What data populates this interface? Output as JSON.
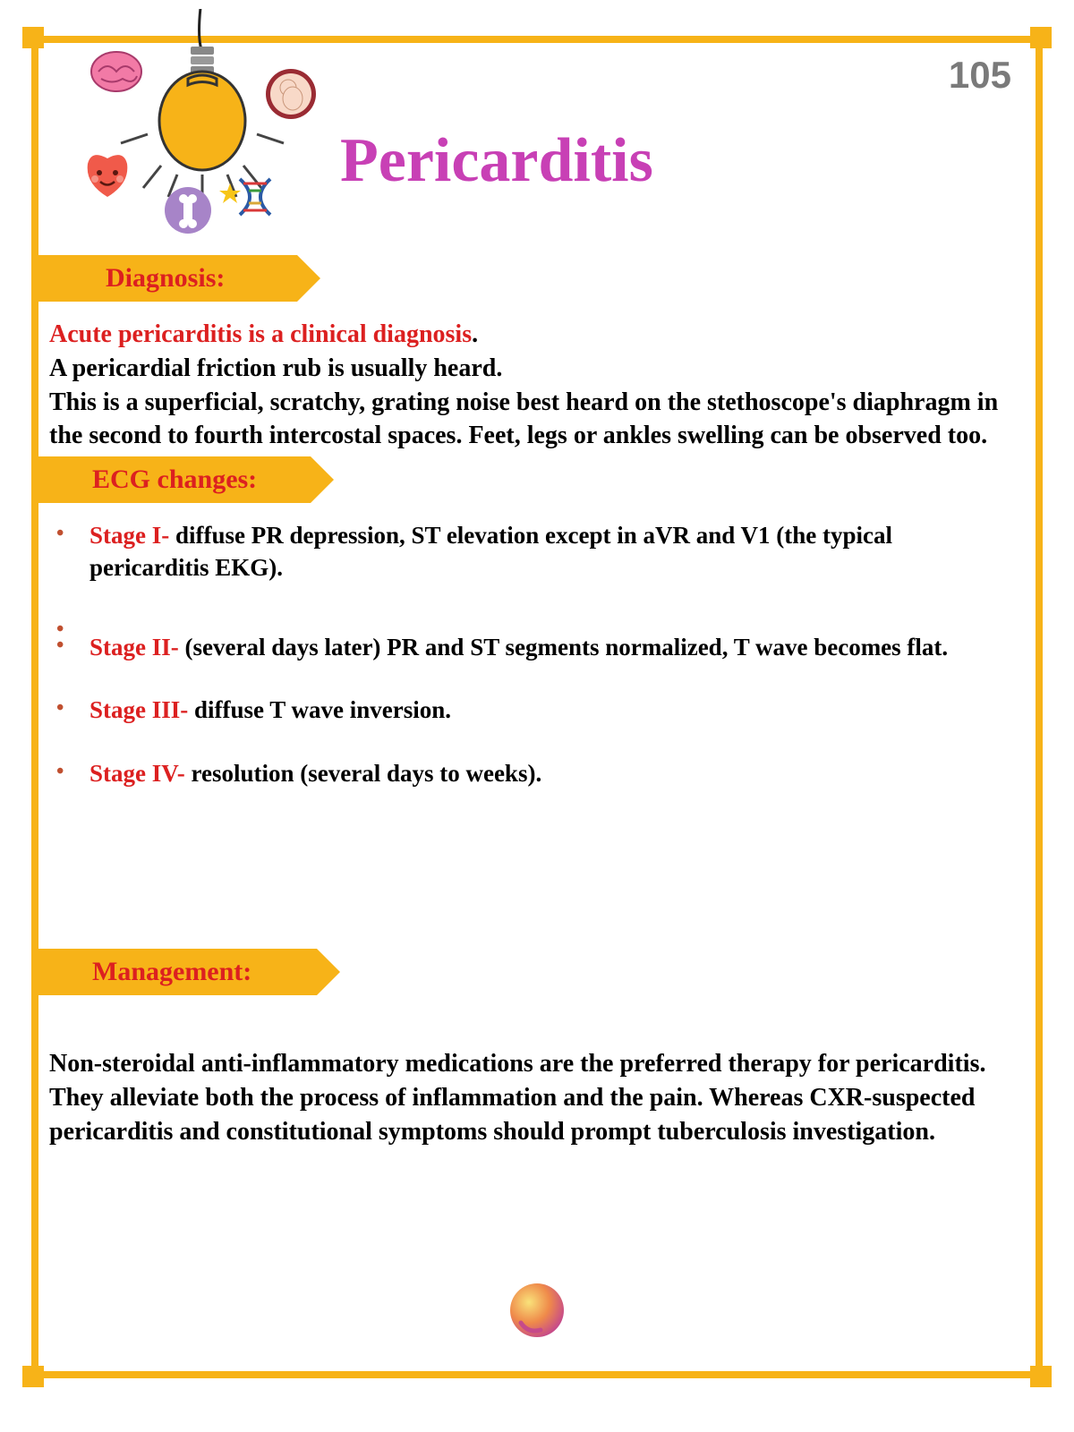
{
  "page_number": "105",
  "title": "Pericarditis",
  "colors": {
    "frame": "#f7b318",
    "title": "#c840b5",
    "emphasis": "#dc2020",
    "body_text": "#000000",
    "page_number": "#7a7a7a",
    "bullet": "#c05030"
  },
  "sections": {
    "diagnosis": {
      "heading": "Diagnosis:",
      "lead": "Acute pericarditis is a clinical diagnosis",
      "body": "A pericardial friction rub is usually heard.\nThis is a superficial, scratchy, grating noise best heard on the stethoscope's diaphragm in the second to fourth intercostal spaces. Feet, legs or ankles swelling can be observed too."
    },
    "ecg": {
      "heading": "ECG changes:",
      "items": [
        {
          "stage": "Stage I-",
          "text": " diffuse PR depression, ST elevation except in aVR and V1 (the typical pericarditis EKG)."
        },
        {
          "stage": "",
          "text": ""
        },
        {
          "stage": "Stage II-",
          "text": " (several days later) PR and ST segments normalized, T wave becomes flat."
        },
        {
          "stage": "Stage III-",
          "text": " diffuse T wave inversion."
        },
        {
          "stage": "Stage IV-",
          "text": " resolution (several days to weeks)."
        }
      ]
    },
    "management": {
      "heading": "Management:",
      "body": "Non-steroidal anti-inflammatory medications are the preferred therapy for pericarditis. They alleviate both the process of inflammation and the pain. Whereas CXR-suspected pericarditis and constitutional symptoms should prompt tuberculosis investigation."
    }
  }
}
